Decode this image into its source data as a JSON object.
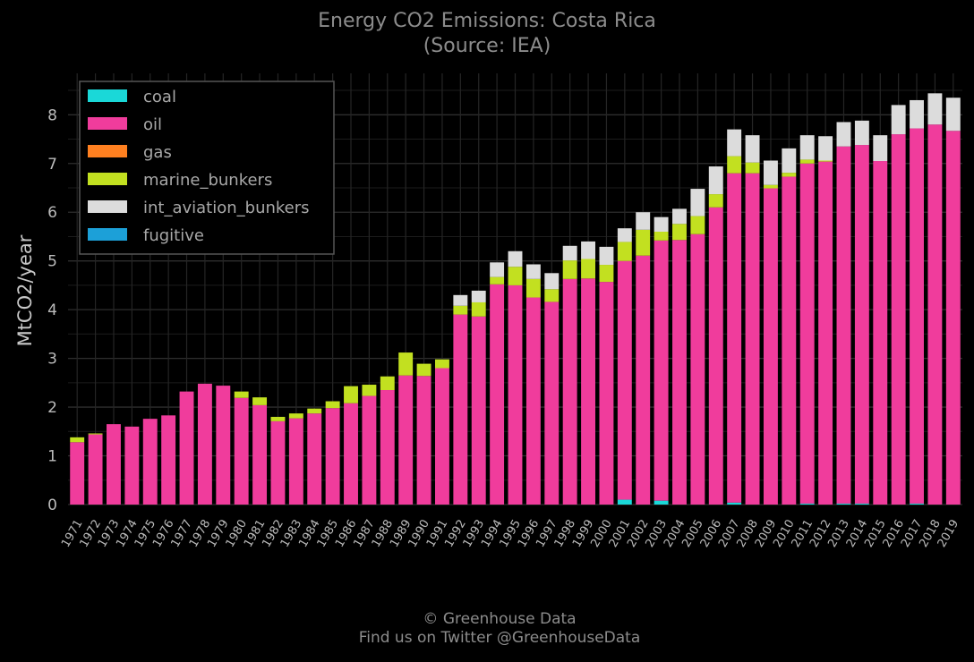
{
  "chart_data": {
    "type": "bar",
    "stacked": true,
    "title": "Energy CO2 Emissions: Costa Rica",
    "subtitle": "(Source: IEA)",
    "xlabel": "",
    "ylabel": "MtCO2/year",
    "ylim": [
      0,
      8.85
    ],
    "yticks": [
      0,
      1,
      2,
      3,
      4,
      5,
      6,
      7,
      8
    ],
    "grid": true,
    "legend_position": "top-left",
    "categories": [
      "1971",
      "1972",
      "1973",
      "1974",
      "1975",
      "1976",
      "1977",
      "1978",
      "1979",
      "1980",
      "1981",
      "1982",
      "1983",
      "1984",
      "1985",
      "1986",
      "1987",
      "1988",
      "1989",
      "1990",
      "1991",
      "1992",
      "1993",
      "1994",
      "1995",
      "1996",
      "1997",
      "1998",
      "1999",
      "2000",
      "2001",
      "2002",
      "2003",
      "2004",
      "2005",
      "2006",
      "2007",
      "2008",
      "2009",
      "2010",
      "2011",
      "2012",
      "2013",
      "2014",
      "2015",
      "2016",
      "2017",
      "2018",
      "2019"
    ],
    "series": [
      {
        "name": "coal",
        "color": "#1ad8d8",
        "values": [
          0,
          0,
          0,
          0,
          0,
          0,
          0,
          0,
          0,
          0,
          0,
          0,
          0,
          0,
          0,
          0,
          0,
          0,
          0,
          0,
          0,
          0,
          0,
          0,
          0,
          0,
          0,
          0,
          0,
          0,
          0.1,
          0,
          0.08,
          0,
          0,
          0,
          0.04,
          0,
          0,
          0,
          0.02,
          0,
          0.02,
          0.02,
          0,
          0,
          0.02,
          0,
          0
        ]
      },
      {
        "name": "oil",
        "color": "#f03c9c",
        "values": [
          1.28,
          1.44,
          1.65,
          1.6,
          1.76,
          1.83,
          2.32,
          2.48,
          2.44,
          2.19,
          2.04,
          1.71,
          1.77,
          1.87,
          1.98,
          2.08,
          2.23,
          2.35,
          2.65,
          2.64,
          2.8,
          3.9,
          3.86,
          4.52,
          4.5,
          4.25,
          4.16,
          4.63,
          4.64,
          4.57,
          4.9,
          5.11,
          5.34,
          5.43,
          5.55,
          6.1,
          6.76,
          6.8,
          6.49,
          6.73,
          6.98,
          7.04,
          7.33,
          7.36,
          7.05,
          7.6,
          7.7,
          7.8,
          7.67
        ]
      },
      {
        "name": "gas",
        "color": "#ff8020",
        "values": [
          0,
          0,
          0,
          0,
          0,
          0,
          0,
          0,
          0,
          0,
          0,
          0,
          0,
          0,
          0,
          0,
          0,
          0,
          0,
          0,
          0,
          0,
          0,
          0,
          0,
          0,
          0,
          0,
          0,
          0,
          0,
          0,
          0,
          0,
          0,
          0,
          0,
          0,
          0,
          0,
          0,
          0,
          0,
          0,
          0,
          0,
          0,
          0,
          0
        ]
      },
      {
        "name": "marine_bunkers",
        "color": "#c2e020",
        "values": [
          0.1,
          0.02,
          0,
          0,
          0,
          0,
          0,
          0,
          0,
          0.13,
          0.16,
          0.09,
          0.1,
          0.1,
          0.14,
          0.35,
          0.23,
          0.28,
          0.47,
          0.25,
          0.18,
          0.18,
          0.29,
          0.15,
          0.38,
          0.38,
          0.26,
          0.38,
          0.4,
          0.35,
          0.39,
          0.53,
          0.18,
          0.33,
          0.37,
          0.27,
          0.35,
          0.22,
          0.07,
          0.08,
          0.08,
          0.02,
          0,
          0,
          0,
          0,
          0,
          0,
          0
        ]
      },
      {
        "name": "int_aviation_bunkers",
        "color": "#dcdcdc",
        "values": [
          0,
          0,
          0,
          0,
          0,
          0,
          0,
          0,
          0,
          0,
          0,
          0,
          0,
          0,
          0,
          0,
          0,
          0,
          0,
          0,
          0,
          0.22,
          0.24,
          0.3,
          0.32,
          0.3,
          0.33,
          0.3,
          0.36,
          0.37,
          0.28,
          0.36,
          0.3,
          0.31,
          0.56,
          0.57,
          0.55,
          0.56,
          0.5,
          0.5,
          0.5,
          0.5,
          0.5,
          0.5,
          0.53,
          0.6,
          0.58,
          0.64,
          0.68
        ]
      },
      {
        "name": "fugitive",
        "color": "#1ca0d8",
        "values": [
          0,
          0,
          0,
          0,
          0,
          0,
          0,
          0,
          0,
          0,
          0,
          0,
          0,
          0,
          0,
          0,
          0,
          0,
          0,
          0,
          0,
          0,
          0,
          0,
          0,
          0,
          0,
          0,
          0,
          0,
          0,
          0,
          0,
          0,
          0,
          0,
          0,
          0,
          0,
          0,
          0,
          0,
          0,
          0,
          0,
          0,
          0,
          0,
          0
        ]
      }
    ]
  },
  "footer": {
    "credit": "© Greenhouse Data",
    "twitter": "Find us on Twitter @GreenhouseData"
  }
}
